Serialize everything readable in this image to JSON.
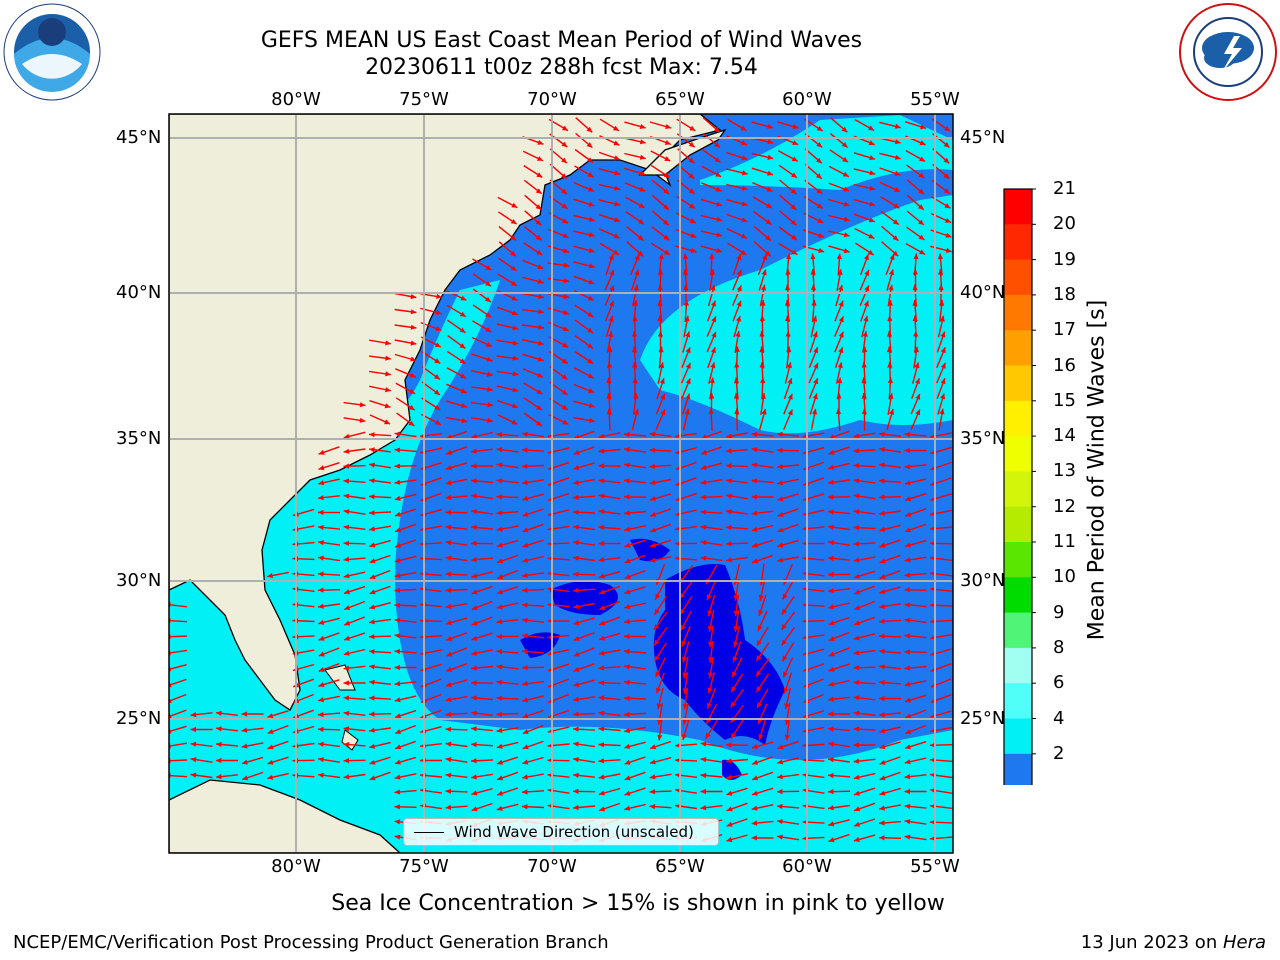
{
  "header": {
    "title_line1": "GEFS MEAN US East Coast Mean Period of Wind Waves",
    "title_line2": "20230611 t00z 288h fcst   Max: 7.54"
  },
  "map": {
    "lon_labels": [
      "80°W",
      "75°W",
      "70°W",
      "65°W",
      "60°W",
      "55°W"
    ],
    "lat_labels": [
      "45°N",
      "40°N",
      "35°N",
      "30°N",
      "25°N"
    ],
    "legend_label": "Wind Wave Direction (unscaled)",
    "colors": {
      "land": "#efeedb",
      "band_2_4": "#1e78f0",
      "band_4_6": "#00f0f5",
      "below_2": "#0000e6",
      "arrow": "#ff0000",
      "grid": "#b0b0b0"
    }
  },
  "colorbar": {
    "label": "Mean Period of Wind Waves [s]",
    "ticks": [
      "21",
      "20",
      "19",
      "18",
      "17",
      "16",
      "15",
      "14",
      "13",
      "12",
      "11",
      "10",
      "9",
      "8",
      "6",
      "4",
      "2"
    ],
    "colors": [
      "#ff0000",
      "#ff2800",
      "#ff5000",
      "#ff7800",
      "#ffa000",
      "#ffc800",
      "#fff000",
      "#f0ff00",
      "#d2f50a",
      "#b4eb00",
      "#5ae600",
      "#00dc00",
      "#50f578",
      "#a0fff0",
      "#50fff8",
      "#00f0f5",
      "#1e78f0"
    ],
    "under_color": "#0000e6"
  },
  "notes": {
    "sea_ice": "Sea Ice Concentration > 15% is shown in pink to yellow"
  },
  "footer": {
    "left": "NCEP/EMC/Verification Post Processing Product Generation Branch",
    "date": "13 Jun 2023 on ",
    "host": "Hera"
  }
}
